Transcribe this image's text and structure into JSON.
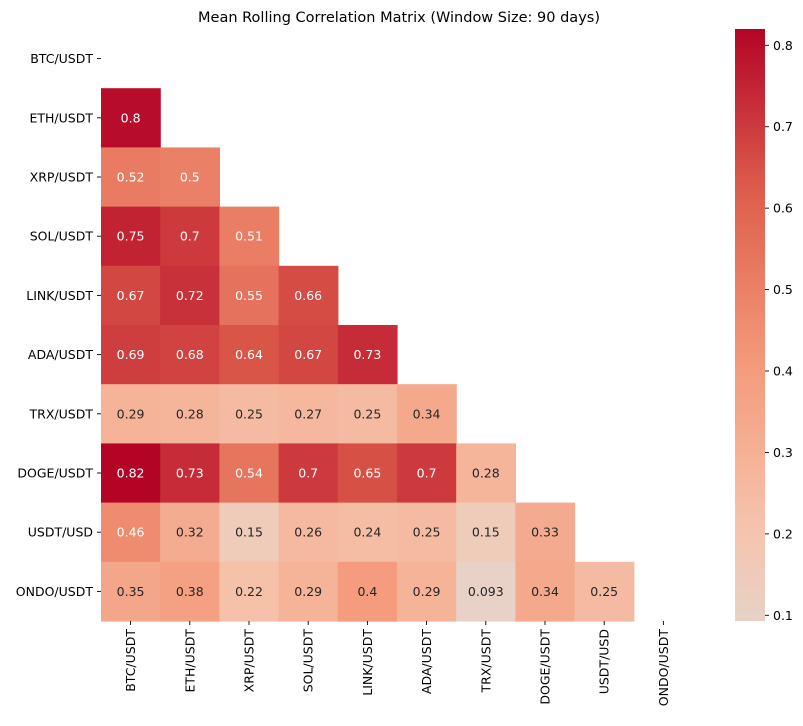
{
  "chart_data": {
    "type": "heatmap",
    "title": "Mean Rolling Correlation Matrix (Window Size: 90 days)",
    "rows": [
      "BTC/USDT",
      "ETH/USDT",
      "XRP/USDT",
      "SOL/USDT",
      "LINK/USDT",
      "ADA/USDT",
      "TRX/USDT",
      "DOGE/USDT",
      "USDT/USD",
      "ONDO/USDT"
    ],
    "columns": [
      "BTC/USDT",
      "ETH/USDT",
      "XRP/USDT",
      "SOL/USDT",
      "LINK/USDT",
      "ADA/USDT",
      "TRX/USDT",
      "DOGE/USDT",
      "USDT/USD",
      "ONDO/USDT"
    ],
    "mask": "upper-triangle-including-diagonal",
    "values": [
      [
        null,
        null,
        null,
        null,
        null,
        null,
        null,
        null,
        null,
        null
      ],
      [
        0.8,
        null,
        null,
        null,
        null,
        null,
        null,
        null,
        null,
        null
      ],
      [
        0.52,
        0.5,
        null,
        null,
        null,
        null,
        null,
        null,
        null,
        null
      ],
      [
        0.75,
        0.7,
        0.51,
        null,
        null,
        null,
        null,
        null,
        null,
        null
      ],
      [
        0.67,
        0.72,
        0.55,
        0.66,
        null,
        null,
        null,
        null,
        null,
        null
      ],
      [
        0.69,
        0.68,
        0.64,
        0.67,
        0.73,
        null,
        null,
        null,
        null,
        null
      ],
      [
        0.29,
        0.28,
        0.25,
        0.27,
        0.25,
        0.34,
        null,
        null,
        null,
        null
      ],
      [
        0.82,
        0.73,
        0.54,
        0.7,
        0.65,
        0.7,
        0.28,
        null,
        null,
        null
      ],
      [
        0.46,
        0.32,
        0.15,
        0.26,
        0.24,
        0.25,
        0.15,
        0.33,
        null,
        null
      ],
      [
        0.35,
        0.38,
        0.22,
        0.29,
        0.4,
        0.29,
        0.093,
        0.34,
        0.25,
        null
      ]
    ],
    "annotations": [
      [
        null,
        null,
        null,
        null,
        null,
        null,
        null,
        null,
        null,
        null
      ],
      [
        "0.8",
        null,
        null,
        null,
        null,
        null,
        null,
        null,
        null,
        null
      ],
      [
        "0.52",
        "0.5",
        null,
        null,
        null,
        null,
        null,
        null,
        null,
        null
      ],
      [
        "0.75",
        "0.7",
        "0.51",
        null,
        null,
        null,
        null,
        null,
        null,
        null
      ],
      [
        "0.67",
        "0.72",
        "0.55",
        "0.66",
        null,
        null,
        null,
        null,
        null,
        null
      ],
      [
        "0.69",
        "0.68",
        "0.64",
        "0.67",
        "0.73",
        null,
        null,
        null,
        null,
        null
      ],
      [
        "0.29",
        "0.28",
        "0.25",
        "0.27",
        "0.25",
        "0.34",
        null,
        null,
        null,
        null
      ],
      [
        "0.82",
        "0.73",
        "0.54",
        "0.7",
        "0.65",
        "0.7",
        "0.28",
        null,
        null,
        null
      ],
      [
        "0.46",
        "0.32",
        "0.15",
        "0.26",
        "0.24",
        "0.25",
        "0.15",
        "0.33",
        null,
        null
      ],
      [
        "0.35",
        "0.38",
        "0.22",
        "0.29",
        "0.4",
        "0.29",
        "0.093",
        "0.34",
        "0.25",
        null
      ]
    ],
    "colormap": "coolwarm",
    "colorbar": {
      "vmin": 0.093,
      "vmax": 0.82,
      "ticks": [
        0.1,
        0.2,
        0.3,
        0.4,
        0.5,
        0.6,
        0.7,
        0.8
      ],
      "tick_labels": [
        "0.1",
        "0.2",
        "0.3",
        "0.4",
        "0.5",
        "0.6",
        "0.7",
        "0.8"
      ]
    },
    "xlabel": "",
    "ylabel": "",
    "grid": false,
    "legend": "colorbar-right"
  }
}
